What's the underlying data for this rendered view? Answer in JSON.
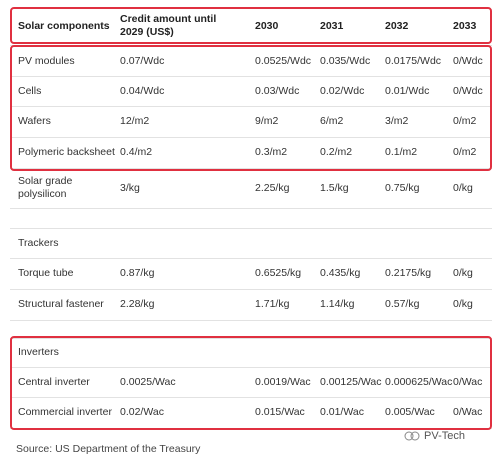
{
  "table": {
    "header": [
      "Solar components",
      "Credit amount until 2029 (US$)",
      "2030",
      "2031",
      "2032",
      "2033"
    ],
    "rows": [
      [
        "PV modules",
        "0.07/Wdc",
        "0.0525/Wdc",
        "0.035/Wdc",
        "0.0175/Wdc",
        "0/Wdc"
      ],
      [
        "Cells",
        "0.04/Wdc",
        "0.03/Wdc",
        "0.02/Wdc",
        "0.01/Wdc",
        "0/Wdc"
      ],
      [
        "Wafers",
        "12/m2",
        "9/m2",
        "6/m2",
        "3/m2",
        "0/m2"
      ],
      [
        "Polymeric backsheet",
        "0.4/m2",
        "0.3/m2",
        "0.2/m2",
        "0.1/m2",
        "0/m2"
      ],
      [
        "Solar grade polysilicon",
        "3/kg",
        "2.25/kg",
        "1.5/kg",
        "0.75/kg",
        "0/kg"
      ],
      [
        "Trackers"
      ],
      [
        "Torque tube",
        "0.87/kg",
        "0.6525/kg",
        "0.435/kg",
        "0.2175/kg",
        "0/kg"
      ],
      [
        "Structural fastener",
        "2.28/kg",
        "1.71/kg",
        "1.14/kg",
        "0.57/kg",
        "0/kg"
      ],
      [
        "Inverters"
      ],
      [
        "Central inverter",
        "0.0025/Wac",
        "0.0019/Wac",
        "0.00125/Wac",
        "0.000625/Wac",
        "0/Wac"
      ],
      [
        "Commercial inverter",
        "0.02/Wac",
        "0.015/Wac",
        "0.01/Wac",
        "0.005/Wac",
        "0/Wac"
      ]
    ]
  },
  "source": "Source: US Department of the Treasury",
  "watermark": "PV-Tech"
}
